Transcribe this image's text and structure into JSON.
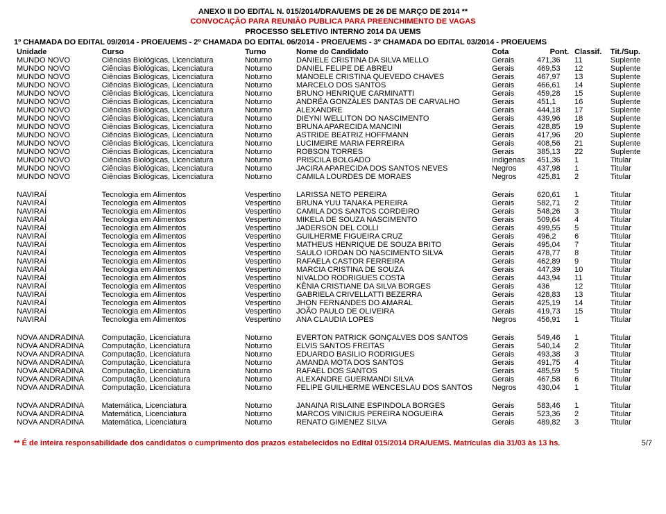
{
  "header": {
    "line1": "ANEXO II DO EDITAL N. 015/2014/DRA/UEMS DE 26 DE MARÇO DE 2014 **",
    "line2": "CONVOCAÇÃO PARA REUNIÃO PUBLICA PARA PREENCHIMENTO DE VAGAS",
    "line3": "PROCESSO SELETIVO INTERNO 2014 DA UEMS",
    "line4": "1º CHAMADA DO EDITAL 09/2014 - PROE/UEMS  -  2º CHAMADA DO EDITAL 06/2014 - PROE/UEMS  -  3º CHAMADA DO EDITAL 03/2014 - PROE/UEMS"
  },
  "columns": {
    "unidade": "Unidade",
    "curso": "Curso",
    "turno": "Turno",
    "nome": "Nome do Candidato",
    "cota": "Cota",
    "pont": "Pont.",
    "classif": "Classif.",
    "tit": "Tit./Sup."
  },
  "sections": [
    {
      "rows": [
        {
          "unidade": "MUNDO NOVO",
          "curso": "Ciências Biológicas, Licenciatura",
          "turno": "Noturno",
          "nome": "DANIELE CRISTINA DA SILVA MELLO",
          "cota": "Gerais",
          "pont": "471,36",
          "classif": "11",
          "tit": "Suplente"
        },
        {
          "unidade": "MUNDO NOVO",
          "curso": "Ciências Biológicas, Licenciatura",
          "turno": "Noturno",
          "nome": "DANIEL FELIPE DE ABREU",
          "cota": "Gerais",
          "pont": "469,53",
          "classif": "12",
          "tit": "Suplente"
        },
        {
          "unidade": "MUNDO NOVO",
          "curso": "Ciências Biológicas, Licenciatura",
          "turno": "Noturno",
          "nome": "MANOELE CRISTINA QUEVEDO CHAVES",
          "cota": "Gerais",
          "pont": "467,97",
          "classif": "13",
          "tit": "Suplente"
        },
        {
          "unidade": "MUNDO NOVO",
          "curso": "Ciências Biológicas, Licenciatura",
          "turno": "Noturno",
          "nome": "MARCELO DOS SANTOS",
          "cota": "Gerais",
          "pont": "466,61",
          "classif": "14",
          "tit": "Suplente"
        },
        {
          "unidade": "MUNDO NOVO",
          "curso": "Ciências Biológicas, Licenciatura",
          "turno": "Noturno",
          "nome": "BRUNO HENRIQUE CARMINATTI",
          "cota": "Gerais",
          "pont": "459,28",
          "classif": "15",
          "tit": "Suplente"
        },
        {
          "unidade": "MUNDO NOVO",
          "curso": "Ciências Biológicas, Licenciatura",
          "turno": "Noturno",
          "nome": "ANDRÉA GONZALES DANTAS DE CARVALHO",
          "cota": "Gerais",
          "pont": "451,1",
          "classif": "16",
          "tit": "Suplente"
        },
        {
          "unidade": "MUNDO NOVO",
          "curso": "Ciências Biológicas, Licenciatura",
          "turno": "Noturno",
          "nome": "ALEXANDRE",
          "cota": "Gerais",
          "pont": "444,18",
          "classif": "17",
          "tit": "Suplente"
        },
        {
          "unidade": "MUNDO NOVO",
          "curso": "Ciências Biológicas, Licenciatura",
          "turno": "Noturno",
          "nome": "DIEYNI WELLITON DO NASCIMENTO",
          "cota": "Gerais",
          "pont": "439,96",
          "classif": "18",
          "tit": "Suplente"
        },
        {
          "unidade": "MUNDO NOVO",
          "curso": "Ciências Biológicas, Licenciatura",
          "turno": "Noturno",
          "nome": "BRUNA APARECIDA MANCINI",
          "cota": "Gerais",
          "pont": "428,85",
          "classif": "19",
          "tit": "Suplente"
        },
        {
          "unidade": "MUNDO NOVO",
          "curso": "Ciências Biológicas, Licenciatura",
          "turno": "Noturno",
          "nome": "ASTRIDE BEATRIZ HOFFMANN",
          "cota": "Gerais",
          "pont": "417,96",
          "classif": "20",
          "tit": "Suplente"
        },
        {
          "unidade": "MUNDO NOVO",
          "curso": "Ciências Biológicas, Licenciatura",
          "turno": "Noturno",
          "nome": "LUCIMEIRE MARIA FERREIRA",
          "cota": "Gerais",
          "pont": "408,56",
          "classif": "21",
          "tit": "Suplente"
        },
        {
          "unidade": "MUNDO NOVO",
          "curso": "Ciências Biológicas, Licenciatura",
          "turno": "Noturno",
          "nome": "ROBSON TORRES",
          "cota": "Gerais",
          "pont": "385,13",
          "classif": "22",
          "tit": "Suplente"
        },
        {
          "unidade": "MUNDO NOVO",
          "curso": "Ciências Biológicas, Licenciatura",
          "turno": "Noturno",
          "nome": "PRISCILA BOLGADO",
          "cota": "Indigenas",
          "pont": "451,36",
          "classif": "1",
          "tit": "Titular"
        },
        {
          "unidade": "MUNDO NOVO",
          "curso": "Ciências Biológicas, Licenciatura",
          "turno": "Noturno",
          "nome": "JACIRA APARECIDA DOS SANTOS NEVES",
          "cota": "Negros",
          "pont": "437,98",
          "classif": "1",
          "tit": "Titular"
        },
        {
          "unidade": "MUNDO NOVO",
          "curso": "Ciências Biológicas, Licenciatura",
          "turno": "Noturno",
          "nome": "CAMILA LOURDES DE MORAES",
          "cota": "Negros",
          "pont": "425,81",
          "classif": "2",
          "tit": "Titular"
        }
      ]
    },
    {
      "rows": [
        {
          "unidade": "NAVIRAÍ",
          "curso": "Tecnologia em Alimentos",
          "turno": "Vespertino",
          "nome": "LARISSA NETO PEREIRA",
          "cota": "Gerais",
          "pont": "620,61",
          "classif": "1",
          "tit": "Titular"
        },
        {
          "unidade": "NAVIRAÍ",
          "curso": "Tecnologia em Alimentos",
          "turno": "Vespertino",
          "nome": "BRUNA YUU TANAKA PEREIRA",
          "cota": "Gerais",
          "pont": "582,71",
          "classif": "2",
          "tit": "Titular"
        },
        {
          "unidade": "NAVIRAÍ",
          "curso": "Tecnologia em Alimentos",
          "turno": "Vespertino",
          "nome": "CAMILA DOS SANTOS CORDEIRO",
          "cota": "Gerais",
          "pont": "548,26",
          "classif": "3",
          "tit": "Titular"
        },
        {
          "unidade": "NAVIRAÍ",
          "curso": "Tecnologia em Alimentos",
          "turno": "Vespertino",
          "nome": "MIKELA DE SOUZA NASCIMENTO",
          "cota": "Gerais",
          "pont": "509,64",
          "classif": "4",
          "tit": "Titular"
        },
        {
          "unidade": "NAVIRAÍ",
          "curso": "Tecnologia em Alimentos",
          "turno": "Vespertino",
          "nome": "JADERSON DEL COLLI",
          "cota": "Gerais",
          "pont": "499,55",
          "classif": "5",
          "tit": "Titular"
        },
        {
          "unidade": "NAVIRAÍ",
          "curso": "Tecnologia em Alimentos",
          "turno": "Vespertino",
          "nome": "GUILHERME FIGUEIRA CRUZ",
          "cota": "Gerais",
          "pont": "496,2",
          "classif": "6",
          "tit": "Titular"
        },
        {
          "unidade": "NAVIRAÍ",
          "curso": "Tecnologia em Alimentos",
          "turno": "Vespertino",
          "nome": "MATHEUS HENRIQUE DE SOUZA BRITO",
          "cota": "Gerais",
          "pont": "495,04",
          "classif": "7",
          "tit": "Titular"
        },
        {
          "unidade": "NAVIRAÍ",
          "curso": "Tecnologia em Alimentos",
          "turno": "Vespertino",
          "nome": "SAULO IORDAN DO NASCIMENTO SILVA",
          "cota": "Gerais",
          "pont": "478,77",
          "classif": "8",
          "tit": "Titular"
        },
        {
          "unidade": "NAVIRAÍ",
          "curso": "Tecnologia em Alimentos",
          "turno": "Vespertino",
          "nome": "RAFAELA CASTOR FERREIRA",
          "cota": "Gerais",
          "pont": "462,89",
          "classif": "9",
          "tit": "Titular"
        },
        {
          "unidade": "NAVIRAÍ",
          "curso": "Tecnologia em Alimentos",
          "turno": "Vespertino",
          "nome": "MARCIA CRISTINA DE SOUZA",
          "cota": "Gerais",
          "pont": "447,39",
          "classif": "10",
          "tit": "Titular"
        },
        {
          "unidade": "NAVIRAÍ",
          "curso": "Tecnologia em Alimentos",
          "turno": "Vespertino",
          "nome": "NIVALDO RODRIGUES COSTA",
          "cota": "Gerais",
          "pont": "443,94",
          "classif": "11",
          "tit": "Titular"
        },
        {
          "unidade": "NAVIRAÍ",
          "curso": "Tecnologia em Alimentos",
          "turno": "Vespertino",
          "nome": "KÊNIA CRISTIANE DA SILVA BORGES",
          "cota": "Gerais",
          "pont": "436",
          "classif": "12",
          "tit": "Titular"
        },
        {
          "unidade": "NAVIRAÍ",
          "curso": "Tecnologia em Alimentos",
          "turno": "Vespertino",
          "nome": "GABRIELA CRIVELLATTI BEZERRA",
          "cota": "Gerais",
          "pont": "428,83",
          "classif": "13",
          "tit": "Titular"
        },
        {
          "unidade": "NAVIRAÍ",
          "curso": "Tecnologia em Alimentos",
          "turno": "Vespertino",
          "nome": "JHON FERNANDES DO AMARAL",
          "cota": "Gerais",
          "pont": "425,19",
          "classif": "14",
          "tit": "Titular"
        },
        {
          "unidade": "NAVIRAÍ",
          "curso": "Tecnologia em Alimentos",
          "turno": "Vespertino",
          "nome": "JOÃO PAULO DE OLIVEIRA",
          "cota": "Gerais",
          "pont": "419,73",
          "classif": "15",
          "tit": "Titular"
        },
        {
          "unidade": "NAVIRAÍ",
          "curso": "Tecnologia em Alimentos",
          "turno": "Vespertino",
          "nome": "ANA CLAUDIA LOPES",
          "cota": "Negros",
          "pont": "456,91",
          "classif": "1",
          "tit": "Titular"
        }
      ]
    },
    {
      "rows": [
        {
          "unidade": "NOVA ANDRADINA",
          "curso": "Computação, Licenciatura",
          "turno": "Noturno",
          "nome": "EVERTON PATRICK GONÇALVES DOS SANTOS",
          "cota": "Gerais",
          "pont": "549,46",
          "classif": "1",
          "tit": "Titular"
        },
        {
          "unidade": "NOVA ANDRADINA",
          "curso": "Computação, Licenciatura",
          "turno": "Noturno",
          "nome": "ELVIS SANTOS FREITAS",
          "cota": "Gerais",
          "pont": "540,14",
          "classif": "2",
          "tit": "Titular"
        },
        {
          "unidade": "NOVA ANDRADINA",
          "curso": "Computação, Licenciatura",
          "turno": "Noturno",
          "nome": "EDUARDO BASILIO RODRIGUES",
          "cota": "Gerais",
          "pont": "493,38",
          "classif": "3",
          "tit": "Titular"
        },
        {
          "unidade": "NOVA ANDRADINA",
          "curso": "Computação, Licenciatura",
          "turno": "Noturno",
          "nome": "AMANDA MOTA DOS SANTOS",
          "cota": "Gerais",
          "pont": "491,75",
          "classif": "4",
          "tit": "Titular"
        },
        {
          "unidade": "NOVA ANDRADINA",
          "curso": "Computação, Licenciatura",
          "turno": "Noturno",
          "nome": "RAFAEL DOS SANTOS",
          "cota": "Gerais",
          "pont": "485,59",
          "classif": "5",
          "tit": "Titular"
        },
        {
          "unidade": "NOVA ANDRADINA",
          "curso": "Computação, Licenciatura",
          "turno": "Noturno",
          "nome": "ALEXANDRE GUERMANDI SILVA",
          "cota": "Gerais",
          "pont": "467,58",
          "classif": "6",
          "tit": "Titular"
        },
        {
          "unidade": "NOVA ANDRADINA",
          "curso": "Computação, Licenciatura",
          "turno": "Noturno",
          "nome": "FELIPE GUILHERME WENCESLAU DOS SANTOS",
          "cota": "Negros",
          "pont": "430,04",
          "classif": "1",
          "tit": "Titular"
        }
      ]
    },
    {
      "rows": [
        {
          "unidade": "NOVA ANDRADINA",
          "curso": "Matemática, Licenciatura",
          "turno": "Noturno",
          "nome": "JANAINA RISLAINE ESPINDOLA BORGES",
          "cota": "Gerais",
          "pont": "583,46",
          "classif": "1",
          "tit": "Titular"
        },
        {
          "unidade": "NOVA ANDRADINA",
          "curso": "Matemática, Licenciatura",
          "turno": "Noturno",
          "nome": "MARCOS VINICIUS PEREIRA NOGUEIRA",
          "cota": "Gerais",
          "pont": "523,36",
          "classif": "2",
          "tit": "Titular"
        },
        {
          "unidade": "NOVA ANDRADINA",
          "curso": "Matemática, Licenciatura",
          "turno": "Noturno",
          "nome": "RENATO GIMENEZ SILVA",
          "cota": "Gerais",
          "pont": "489,82",
          "classif": "3",
          "tit": "Titular"
        }
      ]
    }
  ],
  "footer": {
    "text": "** É de inteira responsabilidade dos candidatos o cumprimento dos prazos estabelecidos no Edital 015/2014 DRA/UEMS. Matrículas dia 31/03 às 13 hs.",
    "page": "5/7"
  }
}
